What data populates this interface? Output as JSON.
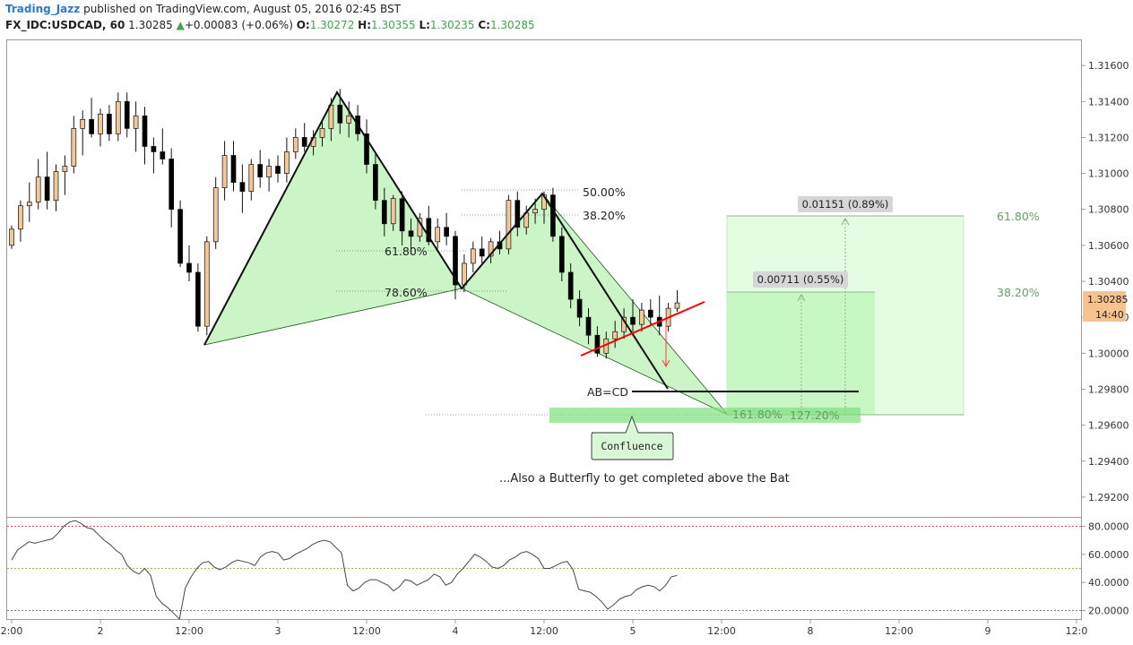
{
  "header": {
    "author": "Trading_Jazz",
    "published": "published on TradingView.com, August 05, 2016 02:45 BST",
    "symbol": "FX_IDC:USDCAD, 60",
    "last": "1.30285",
    "change": "+0.00083 (+0.06%)",
    "o_label": "O:",
    "o_value": "1.30272",
    "h_label": "H:",
    "h_value": "1.30355",
    "l_label": "L:",
    "l_value": "1.30235",
    "c_label": "C:",
    "c_value": "1.30285"
  },
  "colors": {
    "up_candle": "#f2c89b",
    "down_candle": "#000000",
    "pattern_fill": "#b9f0b4",
    "target_zone": "#7ee07e",
    "trendline": "#ff0000",
    "price_label": "#f6c38f"
  },
  "chart_data": {
    "type": "candlestick",
    "price_ticks": [
      "1.31600",
      "1.31400",
      "1.31200",
      "1.31000",
      "1.30800",
      "1.30600",
      "1.30400",
      "1.30200",
      "1.30000",
      "1.29800",
      "1.29600",
      "1.29400",
      "1.29200"
    ],
    "price_range": [
      1.2909,
      1.3174
    ],
    "current_price": "1.30285",
    "countdown": "14:40",
    "time_ticks": [
      {
        "label": "2:00",
        "slot": 0
      },
      {
        "label": "2",
        "slot": 10
      },
      {
        "label": "12:00",
        "slot": 20
      },
      {
        "label": "3",
        "slot": 30
      },
      {
        "label": "12:00",
        "slot": 40
      },
      {
        "label": "4",
        "slot": 50
      },
      {
        "label": "12:00",
        "slot": 60
      },
      {
        "label": "5",
        "slot": 70
      },
      {
        "label": "12:00",
        "slot": 80
      },
      {
        "label": "8",
        "slot": 90
      },
      {
        "label": "12:00",
        "slot": 100
      },
      {
        "label": "9",
        "slot": 110
      },
      {
        "label": "12:0",
        "slot": 120
      }
    ],
    "candles": [
      [
        1.306,
        1.3071,
        1.3058,
        1.3069
      ],
      [
        1.3069,
        1.3085,
        1.3062,
        1.3082
      ],
      [
        1.3082,
        1.3095,
        1.3073,
        1.3084
      ],
      [
        1.3084,
        1.3108,
        1.308,
        1.3098
      ],
      [
        1.3098,
        1.3112,
        1.308,
        1.3085
      ],
      [
        1.3085,
        1.3105,
        1.3079,
        1.3101
      ],
      [
        1.3101,
        1.311,
        1.3088,
        1.3104
      ],
      [
        1.3104,
        1.3132,
        1.31,
        1.3125
      ],
      [
        1.3125,
        1.3135,
        1.311,
        1.313
      ],
      [
        1.313,
        1.3142,
        1.312,
        1.3122
      ],
      [
        1.3122,
        1.3136,
        1.3115,
        1.3133
      ],
      [
        1.3133,
        1.3138,
        1.3118,
        1.3122
      ],
      [
        1.3122,
        1.3145,
        1.3118,
        1.314
      ],
      [
        1.314,
        1.3145,
        1.312,
        1.3125
      ],
      [
        1.3125,
        1.314,
        1.3112,
        1.3132
      ],
      [
        1.3132,
        1.3137,
        1.3105,
        1.3115
      ],
      [
        1.3115,
        1.312,
        1.31,
        1.3112
      ],
      [
        1.3112,
        1.3125,
        1.3105,
        1.3108
      ],
      [
        1.3108,
        1.3114,
        1.307,
        1.308
      ],
      [
        1.308,
        1.3085,
        1.3048,
        1.305
      ],
      [
        1.305,
        1.306,
        1.304,
        1.3045
      ],
      [
        1.3045,
        1.305,
        1.3012,
        1.3015
      ],
      [
        1.3015,
        1.3065,
        1.301,
        1.3062
      ],
      [
        1.3062,
        1.3098,
        1.3058,
        1.3092
      ],
      [
        1.3092,
        1.3118,
        1.3085,
        1.311
      ],
      [
        1.311,
        1.3118,
        1.309,
        1.3095
      ],
      [
        1.3095,
        1.3105,
        1.3078,
        1.309
      ],
      [
        1.309,
        1.3108,
        1.3085,
        1.3105
      ],
      [
        1.3105,
        1.3113,
        1.3092,
        1.3098
      ],
      [
        1.3098,
        1.3108,
        1.309,
        1.3104
      ],
      [
        1.3104,
        1.311,
        1.3095,
        1.31
      ],
      [
        1.31,
        1.312,
        1.3095,
        1.3112
      ],
      [
        1.3112,
        1.3125,
        1.3108,
        1.312
      ],
      [
        1.312,
        1.3128,
        1.3112,
        1.3115
      ],
      [
        1.3115,
        1.3124,
        1.311,
        1.312
      ],
      [
        1.312,
        1.313,
        1.3115,
        1.3125
      ],
      [
        1.3125,
        1.3142,
        1.3118,
        1.3138
      ],
      [
        1.3138,
        1.3147,
        1.3122,
        1.3128
      ],
      [
        1.3128,
        1.314,
        1.312,
        1.3132
      ],
      [
        1.3132,
        1.3138,
        1.3118,
        1.3122
      ],
      [
        1.3122,
        1.313,
        1.31,
        1.3105
      ],
      [
        1.3105,
        1.3112,
        1.308,
        1.3085
      ],
      [
        1.3085,
        1.3092,
        1.3065,
        1.3072
      ],
      [
        1.3072,
        1.3088,
        1.3068,
        1.3086
      ],
      [
        1.3086,
        1.309,
        1.306,
        1.3068
      ],
      [
        1.3068,
        1.3075,
        1.3055,
        1.3065
      ],
      [
        1.3065,
        1.3078,
        1.3062,
        1.3075
      ],
      [
        1.3075,
        1.3082,
        1.306,
        1.3062
      ],
      [
        1.3062,
        1.3075,
        1.3058,
        1.307
      ],
      [
        1.307,
        1.3078,
        1.306,
        1.3065
      ],
      [
        1.3065,
        1.3068,
        1.303,
        1.3038
      ],
      [
        1.3038,
        1.3055,
        1.3034,
        1.305
      ],
      [
        1.305,
        1.3062,
        1.3045,
        1.3058
      ],
      [
        1.3058,
        1.3065,
        1.305,
        1.3054
      ],
      [
        1.3054,
        1.3064,
        1.305,
        1.3062
      ],
      [
        1.3062,
        1.3068,
        1.3055,
        1.3058
      ],
      [
        1.3058,
        1.3088,
        1.3055,
        1.3085
      ],
      [
        1.3085,
        1.309,
        1.3065,
        1.307
      ],
      [
        1.307,
        1.3082,
        1.3066,
        1.3078
      ],
      [
        1.3078,
        1.3086,
        1.3072,
        1.308
      ],
      [
        1.308,
        1.309,
        1.3072,
        1.3088
      ],
      [
        1.3088,
        1.3092,
        1.3062,
        1.3065
      ],
      [
        1.3065,
        1.307,
        1.304,
        1.3045
      ],
      [
        1.3045,
        1.305,
        1.3025,
        1.303
      ],
      [
        1.303,
        1.3035,
        1.3015,
        1.302
      ],
      [
        1.302,
        1.3025,
        1.3005,
        1.301
      ],
      [
        1.301,
        1.3015,
        1.2998,
        1.3
      ],
      [
        1.3,
        1.3012,
        1.2997,
        1.3008
      ],
      [
        1.3008,
        1.3018,
        1.3003,
        1.3012
      ],
      [
        1.3012,
        1.3025,
        1.3008,
        1.302
      ],
      [
        1.302,
        1.303,
        1.3012,
        1.3016
      ],
      [
        1.3016,
        1.3028,
        1.3012,
        1.3024
      ],
      [
        1.3024,
        1.303,
        1.3016,
        1.302
      ],
      [
        1.302,
        1.3032,
        1.301,
        1.3015
      ],
      [
        1.3015,
        1.3028,
        1.3012,
        1.3025
      ],
      [
        1.3025,
        1.3035,
        1.3023,
        1.3028
      ]
    ],
    "rsi": {
      "levels": [
        "80.0000",
        "60.0000",
        "40.0000",
        "20.0000"
      ],
      "range": [
        14,
        86
      ],
      "overbought": 80,
      "middle": 50,
      "oversold": 20,
      "values": [
        56,
        63,
        66,
        69,
        68,
        69,
        70,
        71,
        75,
        80,
        83,
        84,
        82,
        79,
        78,
        74,
        70,
        67,
        63,
        60,
        52,
        48,
        46,
        50,
        45,
        30,
        25,
        22,
        18,
        14,
        36,
        44,
        50,
        54,
        55,
        51,
        49,
        51,
        54,
        56,
        55,
        54,
        52,
        58,
        61,
        62,
        61,
        56,
        57,
        60,
        62,
        64,
        67,
        69,
        70,
        69,
        65,
        61,
        38,
        34,
        36,
        40,
        42,
        42,
        40,
        38,
        34,
        37,
        42,
        41,
        38,
        40,
        42,
        46,
        44,
        38,
        40,
        46,
        50,
        55,
        60,
        58,
        55,
        51,
        50,
        52,
        56,
        58,
        61,
        62,
        60,
        57,
        50,
        50,
        52,
        54,
        55,
        49,
        35,
        34,
        33,
        30,
        26,
        21,
        24,
        28,
        30,
        31,
        35,
        37,
        38,
        37,
        34,
        38,
        44,
        45
      ]
    },
    "annotations": {
      "fib_50": "50.00%",
      "fib_382": "38.20%",
      "fib_618": "61.80%",
      "fib_786": "78.60%",
      "abcd": "AB=CD",
      "ext_1618": "161.80%",
      "ext_1272": "127.20%",
      "target_1": "0.00711 (0.55%)",
      "target_2": "0.01151 (0.89%)",
      "retr_382": "38.20%",
      "retr_618": "61.80%",
      "confluence": "Confluence",
      "note": "...Also a Butterfly to get completed above the Bat"
    }
  }
}
